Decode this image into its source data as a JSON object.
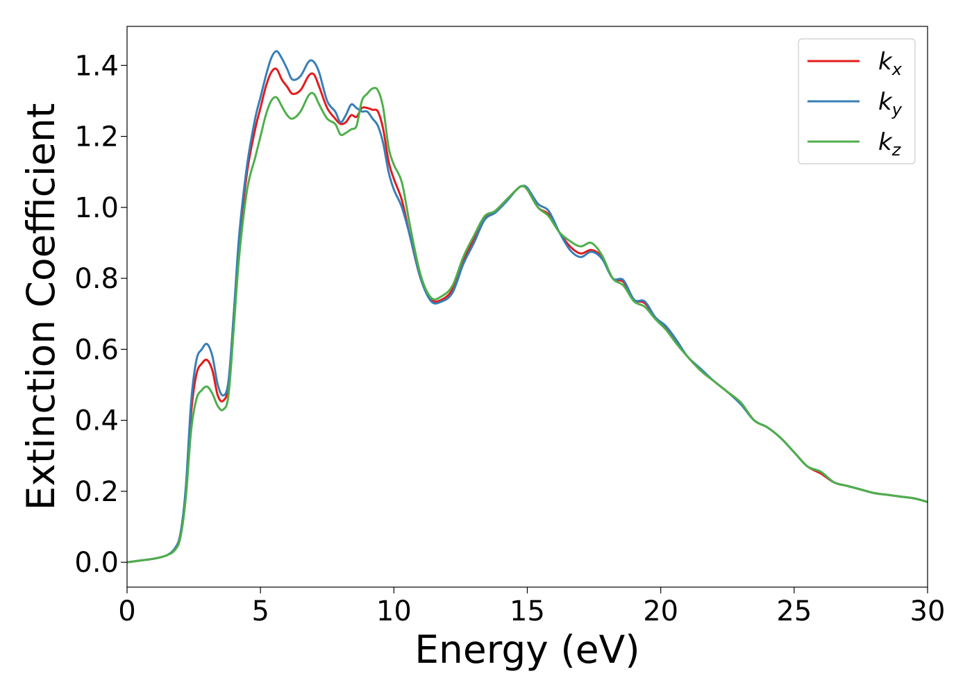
{
  "chart_data": {
    "type": "line",
    "xlabel": "Energy (eV)",
    "ylabel": "Extinction Coefficient",
    "xlim": [
      0,
      30
    ],
    "ylim": [
      -0.07,
      1.51
    ],
    "xticks": [
      0,
      5,
      10,
      15,
      20,
      25,
      30
    ],
    "xtick_labels": [
      "0",
      "5",
      "10",
      "15",
      "20",
      "25",
      "30"
    ],
    "yticks": [
      0.0,
      0.2,
      0.4,
      0.6,
      0.8,
      1.0,
      1.2,
      1.4
    ],
    "ytick_labels": [
      "0.0",
      "0.2",
      "0.4",
      "0.6",
      "0.8",
      "1.0",
      "1.2",
      "1.4"
    ],
    "grid": false,
    "legend_position": "top-right",
    "series": [
      {
        "name": "k",
        "subscript": "x",
        "color": "#e41a1c",
        "x": [
          0,
          0.5,
          1.0,
          1.5,
          1.8,
          2.0,
          2.2,
          2.4,
          2.6,
          2.8,
          3.0,
          3.2,
          3.4,
          3.6,
          3.8,
          4.0,
          4.2,
          4.5,
          4.8,
          5.0,
          5.2,
          5.4,
          5.6,
          5.8,
          6.0,
          6.2,
          6.5,
          6.8,
          7.0,
          7.2,
          7.5,
          7.8,
          8.0,
          8.2,
          8.4,
          8.6,
          8.8,
          9.0,
          9.2,
          9.4,
          9.6,
          9.8,
          10.0,
          10.3,
          10.6,
          11.0,
          11.4,
          11.8,
          12.2,
          12.6,
          13.0,
          13.4,
          13.8,
          14.2,
          14.6,
          14.8,
          15.0,
          15.4,
          15.8,
          16.2,
          16.6,
          17.0,
          17.4,
          17.8,
          18.2,
          18.6,
          19.0,
          19.4,
          19.8,
          20.2,
          20.6,
          21.0,
          21.5,
          22.0,
          22.5,
          23.0,
          23.5,
          24.0,
          24.5,
          25.0,
          25.5,
          26.0,
          26.5,
          27.0,
          27.5,
          28.0,
          28.5,
          29.0,
          29.5,
          30.0
        ],
        "y": [
          0.0,
          0.005,
          0.01,
          0.02,
          0.04,
          0.08,
          0.2,
          0.42,
          0.53,
          0.56,
          0.57,
          0.54,
          0.47,
          0.455,
          0.5,
          0.7,
          0.9,
          1.1,
          1.22,
          1.28,
          1.34,
          1.38,
          1.39,
          1.36,
          1.34,
          1.32,
          1.33,
          1.37,
          1.375,
          1.34,
          1.28,
          1.25,
          1.235,
          1.24,
          1.26,
          1.255,
          1.28,
          1.28,
          1.275,
          1.27,
          1.22,
          1.13,
          1.08,
          1.02,
          0.92,
          0.8,
          0.74,
          0.74,
          0.77,
          0.85,
          0.91,
          0.97,
          0.99,
          1.02,
          1.05,
          1.06,
          1.05,
          1.0,
          0.98,
          0.93,
          0.89,
          0.87,
          0.88,
          0.86,
          0.8,
          0.79,
          0.74,
          0.73,
          0.69,
          0.66,
          0.62,
          0.58,
          0.54,
          0.51,
          0.48,
          0.45,
          0.4,
          0.38,
          0.35,
          0.31,
          0.27,
          0.25,
          0.225,
          0.215,
          0.205,
          0.195,
          0.19,
          0.185,
          0.18,
          0.17
        ]
      },
      {
        "name": "k",
        "subscript": "y",
        "color": "#377eb8",
        "x": [
          0,
          0.5,
          1.0,
          1.5,
          1.8,
          2.0,
          2.2,
          2.4,
          2.6,
          2.8,
          3.0,
          3.2,
          3.4,
          3.6,
          3.8,
          4.0,
          4.2,
          4.5,
          4.8,
          5.0,
          5.2,
          5.4,
          5.6,
          5.8,
          6.0,
          6.2,
          6.5,
          6.8,
          7.0,
          7.2,
          7.5,
          7.8,
          8.0,
          8.2,
          8.4,
          8.6,
          8.8,
          9.0,
          9.2,
          9.4,
          9.6,
          9.8,
          10.0,
          10.3,
          10.6,
          11.0,
          11.4,
          11.8,
          12.2,
          12.6,
          13.0,
          13.4,
          13.8,
          14.2,
          14.6,
          14.8,
          15.0,
          15.4,
          15.8,
          16.2,
          16.6,
          17.0,
          17.4,
          17.8,
          18.2,
          18.6,
          19.0,
          19.4,
          19.8,
          20.2,
          20.6,
          21.0,
          21.5,
          22.0,
          22.5,
          23.0,
          23.5,
          24.0,
          24.5,
          25.0,
          25.5,
          26.0,
          26.5,
          27.0,
          27.5,
          28.0,
          28.5,
          29.0,
          29.5,
          30.0
        ],
        "y": [
          0.0,
          0.005,
          0.01,
          0.02,
          0.04,
          0.08,
          0.21,
          0.45,
          0.57,
          0.6,
          0.615,
          0.58,
          0.5,
          0.47,
          0.51,
          0.7,
          0.92,
          1.12,
          1.25,
          1.31,
          1.37,
          1.42,
          1.44,
          1.42,
          1.39,
          1.36,
          1.37,
          1.41,
          1.41,
          1.38,
          1.3,
          1.27,
          1.24,
          1.26,
          1.29,
          1.28,
          1.27,
          1.27,
          1.25,
          1.23,
          1.18,
          1.1,
          1.05,
          1.0,
          0.92,
          0.8,
          0.735,
          0.735,
          0.76,
          0.84,
          0.9,
          0.965,
          0.985,
          1.015,
          1.05,
          1.06,
          1.055,
          1.01,
          0.99,
          0.93,
          0.88,
          0.86,
          0.875,
          0.855,
          0.8,
          0.795,
          0.74,
          0.735,
          0.69,
          0.665,
          0.625,
          0.58,
          0.545,
          0.51,
          0.48,
          0.445,
          0.4,
          0.38,
          0.35,
          0.31,
          0.27,
          0.255,
          0.225,
          0.215,
          0.205,
          0.195,
          0.19,
          0.185,
          0.18,
          0.17
        ]
      },
      {
        "name": "k",
        "subscript": "z",
        "color": "#4daf4a",
        "x": [
          0,
          0.5,
          1.0,
          1.5,
          1.8,
          2.0,
          2.2,
          2.4,
          2.6,
          2.8,
          3.0,
          3.2,
          3.4,
          3.6,
          3.8,
          4.0,
          4.2,
          4.5,
          4.8,
          5.0,
          5.2,
          5.4,
          5.6,
          5.8,
          6.0,
          6.2,
          6.5,
          6.8,
          7.0,
          7.2,
          7.5,
          7.8,
          8.0,
          8.2,
          8.4,
          8.6,
          8.8,
          9.0,
          9.2,
          9.4,
          9.6,
          9.8,
          10.0,
          10.3,
          10.6,
          11.0,
          11.4,
          11.8,
          12.2,
          12.6,
          13.0,
          13.4,
          13.8,
          14.2,
          14.6,
          14.8,
          15.0,
          15.4,
          15.8,
          16.2,
          16.6,
          17.0,
          17.4,
          17.8,
          18.2,
          18.6,
          19.0,
          19.4,
          19.8,
          20.2,
          20.6,
          21.0,
          21.5,
          22.0,
          22.5,
          23.0,
          23.5,
          24.0,
          24.5,
          25.0,
          25.5,
          26.0,
          26.5,
          27.0,
          27.5,
          28.0,
          28.5,
          29.0,
          29.5,
          30.0
        ],
        "y": [
          0.0,
          0.005,
          0.01,
          0.02,
          0.035,
          0.07,
          0.18,
          0.37,
          0.46,
          0.485,
          0.495,
          0.475,
          0.44,
          0.43,
          0.47,
          0.66,
          0.86,
          1.05,
          1.14,
          1.2,
          1.26,
          1.3,
          1.31,
          1.285,
          1.26,
          1.25,
          1.27,
          1.315,
          1.32,
          1.29,
          1.25,
          1.235,
          1.205,
          1.21,
          1.22,
          1.23,
          1.3,
          1.32,
          1.335,
          1.33,
          1.28,
          1.17,
          1.12,
          1.07,
          0.95,
          0.81,
          0.745,
          0.75,
          0.78,
          0.86,
          0.92,
          0.975,
          0.99,
          1.02,
          1.05,
          1.06,
          1.05,
          1.0,
          0.975,
          0.93,
          0.905,
          0.89,
          0.9,
          0.865,
          0.8,
          0.78,
          0.735,
          0.72,
          0.685,
          0.655,
          0.615,
          0.58,
          0.54,
          0.51,
          0.48,
          0.45,
          0.4,
          0.38,
          0.35,
          0.31,
          0.27,
          0.255,
          0.225,
          0.215,
          0.205,
          0.195,
          0.19,
          0.185,
          0.18,
          0.17
        ]
      }
    ]
  }
}
